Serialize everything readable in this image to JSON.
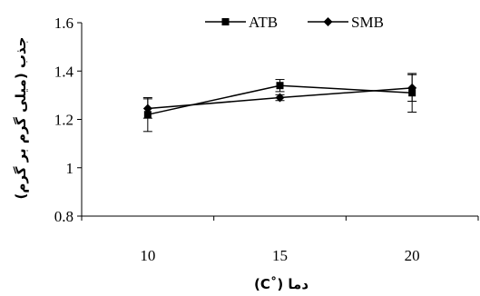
{
  "chart_data": {
    "type": "line",
    "xlabel": "دما (˚C)",
    "ylabel": "جذب (میلی گرم بر گرم)",
    "x": [
      10,
      15,
      20
    ],
    "xlim": [
      7.5,
      22.5
    ],
    "ylim": [
      0.8,
      1.6
    ],
    "yticks": [
      "0.8",
      "1",
      "1.2",
      "1.4",
      "1.6"
    ],
    "xticks": [
      "10",
      "15",
      "20"
    ],
    "grid": false,
    "legend_position": "top",
    "series": [
      {
        "name": "ATB",
        "marker": "square",
        "values": [
          1.22,
          1.34,
          1.31
        ],
        "errors": [
          0.07,
          0.025,
          0.08
        ]
      },
      {
        "name": "SMB",
        "marker": "diamond",
        "values": [
          1.245,
          1.29,
          1.33
        ],
        "errors": [
          0.04,
          0.012,
          0.055
        ]
      }
    ],
    "colors": {
      "line": "#000000"
    }
  }
}
